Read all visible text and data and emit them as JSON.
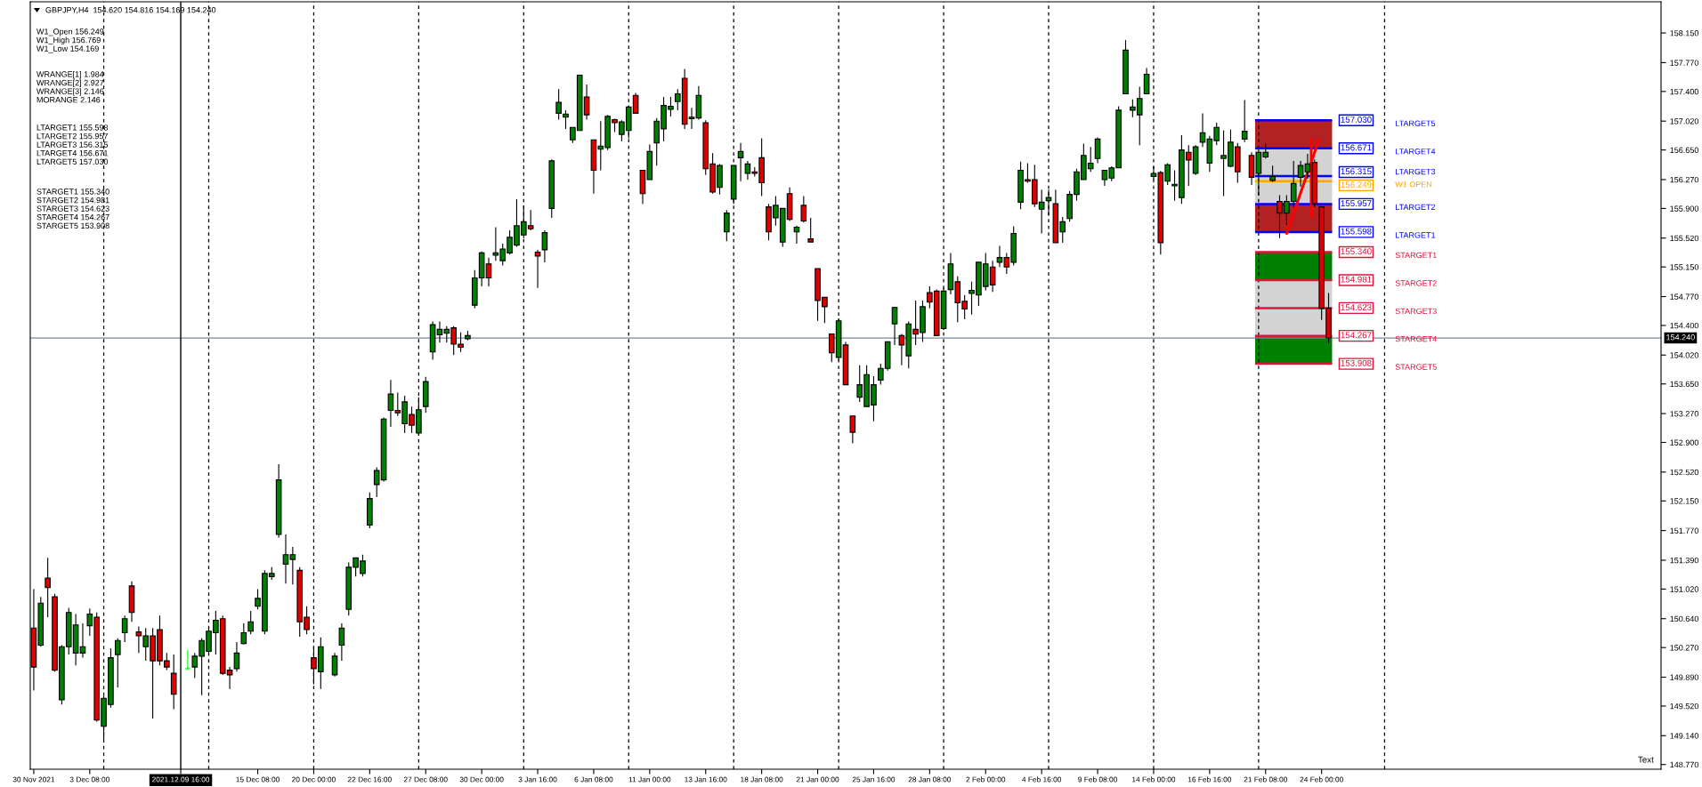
{
  "chart_data": {
    "type": "candlestick",
    "title": "GBPJPY,H4  154.620 154.816 154.169 154.240",
    "annotations": [
      "W1_Open 156.249\nW1_High 156.769\nW1_Low 154.169",
      "WRANGE[1] 1.984\nWRANGE[2] 2.927\nWRANGE[3] 2.146\nMORANGE 2.146",
      "LTARGET1 155.598\nLTARGET2 155.957\nLTARGET3 156.315\nLTARGET4 156.671\nLTARGET5 157.030",
      "STARGET1 155.340\nSTARGET2 154.981\nSTARGET3 154.623\nSTARGET4 154.267\nSTARGET5 153.908",
      "LTARGET5",
      "LTARGET4",
      "LTARGET3",
      "W1 OPEN",
      "LTARGET2",
      "LTARGET1",
      "STARGET1",
      "STARGET2",
      "STARGET3",
      "STARGET4",
      "STARGET5",
      "Text"
    ],
    "categories": [
      "30 Nov 2021",
      null,
      null,
      null,
      null,
      null,
      null,
      null,
      "3 Dec 08:00",
      null,
      null,
      null,
      null,
      null,
      null,
      null,
      null,
      null,
      null,
      null,
      null,
      "2021.12.09 16:00",
      null,
      null,
      null,
      null,
      null,
      null,
      null,
      null,
      null,
      null,
      "15 Dec 08:00",
      null,
      null,
      null,
      null,
      null,
      null,
      null,
      "20 Dec 00:00",
      null,
      null,
      null,
      null,
      null,
      null,
      null,
      "22 Dec 16:00",
      null,
      null,
      null,
      null,
      null,
      null,
      null,
      "27 Dec 08:00",
      null,
      null,
      null,
      null,
      null,
      null,
      null,
      "30 Dec 00:00",
      null,
      null,
      null,
      null,
      null,
      null,
      null,
      "3 Jan 16:00",
      null,
      null,
      null,
      null,
      null,
      null,
      null,
      "6 Jan 08:00",
      null,
      null,
      null,
      null,
      null,
      null,
      null,
      "11 Jan 00:00",
      null,
      null,
      null,
      null,
      null,
      null,
      null,
      "13 Jan 16:00",
      null,
      null,
      null,
      null,
      null,
      null,
      null,
      "18 Jan 08:00",
      null,
      null,
      null,
      null,
      null,
      null,
      null,
      "21 Jan 00:00",
      null,
      null,
      null,
      null,
      null,
      null,
      null,
      "25 Jan 16:00",
      null,
      null,
      null,
      null,
      null,
      null,
      null,
      "28 Jan 08:00",
      null,
      null,
      null,
      null,
      null,
      null,
      null,
      "2 Feb 00:00",
      null,
      null,
      null,
      null,
      null,
      null,
      null,
      "4 Feb 16:00",
      null,
      null,
      null,
      null,
      null,
      null,
      null,
      "9 Feb 08:00",
      null,
      null,
      null,
      null,
      null,
      null,
      null,
      "14 Feb 00:00",
      null,
      null,
      null,
      null,
      null,
      null,
      null,
      "16 Feb 16:00",
      null,
      null,
      null,
      null,
      null,
      null,
      null,
      "21 Feb 08:00",
      null,
      null,
      null,
      null,
      null,
      null,
      null,
      "24 Feb 00:00",
      null,
      null,
      null,
      null,
      null,
      null,
      null,
      null,
      null,
      null,
      null,
      null,
      null,
      null,
      null,
      null,
      null,
      null,
      null,
      null,
      null,
      null,
      null,
      null,
      null,
      null,
      null,
      null,
      null,
      null,
      null,
      null,
      null,
      null,
      null,
      null,
      null,
      null,
      null,
      null,
      null,
      null,
      null,
      null,
      null,
      null,
      null,
      null
    ],
    "ohlc": [
      [
        150.52,
        151.02,
        149.72,
        150.02
      ],
      [
        150.3,
        150.92,
        150.28,
        150.84
      ],
      [
        151.16,
        151.42,
        150.66,
        151.04
      ],
      [
        150.92,
        150.96,
        149.96,
        149.98
      ],
      [
        149.6,
        150.3,
        149.54,
        150.28
      ],
      [
        150.28,
        150.78,
        150.18,
        150.72
      ],
      [
        150.2,
        150.7,
        150.04,
        150.56
      ],
      [
        150.2,
        150.58,
        150.14,
        150.28
      ],
      [
        150.55,
        150.77,
        150.42,
        150.7
      ],
      [
        150.66,
        150.72,
        149.32,
        149.34
      ],
      [
        149.26,
        149.65,
        149.09,
        149.62
      ],
      [
        149.54,
        150.26,
        149.5,
        150.14
      ],
      [
        150.18,
        150.39,
        149.76,
        150.36
      ],
      [
        150.46,
        150.68,
        150.34,
        150.64
      ],
      [
        151.06,
        151.12,
        150.6,
        150.72
      ],
      [
        150.47,
        150.54,
        150.2,
        150.42
      ],
      [
        150.28,
        150.52,
        150.1,
        150.42
      ],
      [
        150.42,
        150.52,
        149.36,
        150.1
      ],
      [
        150.5,
        150.68,
        150.04,
        150.1
      ],
      [
        150.1,
        150.2,
        149.98,
        150.02
      ],
      [
        149.94,
        150.18,
        149.48,
        149.67
      ],
      null,
      [
        150.0,
        150.24,
        149.98,
        150.0
      ],
      [
        150.02,
        150.2,
        149.88,
        150.16
      ],
      [
        150.16,
        150.39,
        149.66,
        150.36
      ],
      [
        150.22,
        150.54,
        150.18,
        150.48
      ],
      [
        150.46,
        150.74,
        150.18,
        150.62
      ],
      [
        150.64,
        150.68,
        149.92,
        149.94
      ],
      [
        149.98,
        150.02,
        149.74,
        149.92
      ],
      [
        150.0,
        150.34,
        149.96,
        150.2
      ],
      [
        150.32,
        150.58,
        150.31,
        150.46
      ],
      [
        150.48,
        150.74,
        150.44,
        150.6
      ],
      [
        150.8,
        151.02,
        150.76,
        150.9
      ],
      [
        150.48,
        151.26,
        150.44,
        151.22
      ],
      [
        151.18,
        151.3,
        151.14,
        151.22
      ],
      [
        151.72,
        152.62,
        151.68,
        152.42
      ],
      [
        151.34,
        151.72,
        151.09,
        151.46
      ],
      [
        151.4,
        151.56,
        151.08,
        151.46
      ],
      [
        151.26,
        151.3,
        150.41,
        150.6
      ],
      [
        150.66,
        150.8,
        150.44,
        150.5
      ],
      [
        150.14,
        150.28,
        149.8,
        150.0
      ],
      [
        149.96,
        150.4,
        149.74,
        150.28
      ],
      null,
      [
        149.92,
        150.2,
        149.9,
        150.16
      ],
      [
        150.3,
        150.58,
        150.1,
        150.52
      ],
      [
        150.76,
        151.36,
        150.68,
        151.3
      ],
      [
        151.3,
        151.42,
        151.18,
        151.42
      ],
      [
        151.22,
        151.46,
        151.18,
        151.38
      ],
      [
        151.84,
        152.26,
        151.8,
        152.18
      ],
      [
        152.36,
        152.58,
        152.2,
        152.54
      ],
      [
        152.42,
        153.22,
        152.4,
        153.2
      ],
      [
        153.31,
        153.7,
        153.1,
        153.52
      ],
      [
        153.31,
        153.54,
        153.24,
        153.28
      ],
      [
        153.14,
        153.5,
        153.02,
        153.42
      ],
      [
        153.26,
        153.36,
        153.02,
        153.12
      ],
      [
        153.02,
        153.48,
        153.0,
        153.32
      ],
      [
        153.36,
        153.74,
        153.28,
        153.68
      ],
      [
        154.06,
        154.45,
        153.96,
        154.41
      ],
      [
        154.28,
        154.45,
        154.18,
        154.35
      ],
      [
        154.3,
        154.39,
        154.18,
        154.35
      ],
      [
        154.37,
        154.39,
        154.02,
        154.16
      ],
      [
        154.16,
        154.31,
        154.06,
        154.12
      ],
      [
        154.23,
        154.33,
        154.21,
        154.27
      ],
      [
        154.66,
        155.11,
        154.62,
        155.01
      ],
      [
        155.01,
        155.35,
        154.9,
        155.33
      ],
      [
        155.19,
        155.27,
        154.9,
        155.01
      ],
      [
        155.3,
        155.66,
        155.23,
        155.33
      ],
      [
        155.23,
        155.45,
        155.17,
        155.38
      ],
      [
        155.33,
        155.62,
        155.31,
        155.53
      ],
      [
        155.43,
        156.02,
        155.41,
        155.68
      ],
      [
        155.56,
        155.94,
        155.52,
        155.73
      ],
      [
        155.68,
        155.88,
        155.62,
        155.64
      ],
      [
        155.34,
        155.37,
        154.88,
        155.29
      ],
      [
        155.37,
        155.62,
        155.21,
        155.59
      ],
      [
        155.9,
        156.53,
        155.78,
        156.51
      ],
      [
        157.12,
        157.43,
        157.04,
        157.26
      ],
      [
        157.07,
        157.16,
        156.92,
        157.11
      ],
      [
        156.78,
        156.94,
        156.74,
        156.94
      ],
      [
        156.9,
        157.61,
        156.9,
        157.61
      ],
      [
        157.33,
        157.49,
        157.04,
        157.1
      ],
      [
        156.78,
        156.78,
        156.09,
        156.39
      ],
      [
        156.66,
        157.02,
        156.39,
        156.7
      ],
      [
        156.68,
        157.1,
        156.65,
        157.08
      ],
      [
        157.04,
        157.05,
        156.88,
        157.0
      ],
      [
        156.85,
        157.03,
        156.76,
        157.01
      ],
      [
        156.9,
        157.22,
        156.8,
        157.2
      ],
      [
        157.35,
        157.38,
        157.12,
        157.12
      ],
      [
        156.39,
        156.39,
        155.96,
        156.09
      ],
      [
        156.27,
        156.72,
        156.27,
        156.63
      ],
      [
        156.74,
        157.06,
        156.45,
        157.02
      ],
      [
        156.92,
        157.33,
        156.76,
        157.22
      ],
      [
        157.17,
        157.33,
        157.08,
        157.21
      ],
      [
        157.27,
        157.43,
        157.16,
        157.37
      ],
      [
        157.57,
        157.69,
        156.92,
        156.98
      ],
      [
        157.05,
        157.19,
        156.92,
        157.07
      ],
      [
        157.06,
        157.47,
        157.04,
        157.35
      ],
      [
        157.0,
        157.03,
        156.33,
        156.41
      ],
      [
        156.47,
        156.61,
        156.09,
        156.11
      ],
      [
        156.17,
        156.47,
        156.08,
        156.45
      ],
      [
        155.6,
        155.88,
        155.48,
        155.84
      ],
      [
        156.02,
        156.45,
        155.96,
        156.45
      ],
      [
        156.55,
        156.74,
        156.25,
        156.63
      ],
      [
        156.35,
        156.51,
        156.27,
        156.47
      ],
      [
        156.37,
        156.43,
        156.31,
        156.35
      ],
      [
        156.55,
        156.8,
        156.06,
        156.23
      ],
      [
        155.92,
        155.96,
        155.49,
        155.6
      ],
      [
        155.78,
        156.06,
        155.68,
        155.94
      ],
      [
        155.47,
        155.9,
        155.41,
        155.9
      ],
      [
        156.09,
        156.17,
        155.74,
        155.76
      ],
      [
        155.6,
        155.68,
        155.45,
        155.66
      ],
      [
        155.94,
        156.06,
        155.72,
        155.74
      ],
      [
        155.51,
        155.78,
        155.47,
        155.47
      ],
      [
        155.13,
        155.13,
        154.46,
        154.72
      ],
      [
        154.76,
        154.76,
        154.43,
        154.64
      ],
      [
        154.29,
        154.29,
        153.93,
        154.05
      ],
      [
        153.99,
        154.49,
        153.95,
        154.46
      ],
      [
        154.15,
        154.19,
        153.64,
        153.64
      ],
      [
        153.24,
        153.24,
        152.89,
        153.03
      ],
      [
        153.48,
        153.89,
        153.42,
        153.64
      ],
      [
        153.36,
        153.89,
        153.36,
        153.77
      ],
      [
        153.38,
        153.75,
        153.17,
        153.64
      ],
      [
        153.7,
        153.91,
        153.64,
        153.85
      ],
      [
        153.85,
        154.19,
        153.82,
        154.19
      ],
      [
        154.42,
        154.64,
        154.15,
        154.63
      ],
      [
        154.27,
        154.29,
        153.89,
        154.15
      ],
      [
        154.01,
        154.45,
        153.85,
        154.42
      ],
      [
        154.35,
        154.72,
        154.15,
        154.29
      ],
      [
        154.31,
        154.72,
        154.19,
        154.64
      ],
      [
        154.82,
        154.9,
        154.62,
        154.7
      ],
      [
        154.84,
        154.86,
        154.27,
        154.27
      ],
      [
        154.36,
        154.88,
        154.34,
        154.84
      ],
      [
        154.86,
        155.33,
        154.8,
        155.19
      ],
      [
        154.96,
        155.03,
        154.44,
        154.69
      ],
      [
        154.71,
        154.79,
        154.48,
        154.61
      ],
      [
        154.81,
        154.96,
        154.54,
        154.85
      ],
      [
        154.79,
        155.21,
        154.65,
        155.21
      ],
      [
        154.9,
        155.33,
        154.85,
        155.19
      ],
      [
        155.15,
        155.23,
        154.83,
        154.92
      ],
      [
        155.21,
        155.42,
        155.15,
        155.27
      ],
      [
        155.27,
        155.33,
        155.06,
        155.15
      ],
      [
        155.21,
        155.67,
        155.17,
        155.58
      ],
      [
        155.98,
        156.5,
        155.89,
        156.39
      ],
      [
        156.27,
        156.48,
        156.23,
        156.25
      ],
      [
        156.27,
        156.46,
        155.92,
        155.96
      ],
      [
        155.89,
        156.14,
        155.58,
        155.98
      ],
      [
        156.0,
        156.14,
        155.81,
        156.04
      ],
      [
        155.96,
        156.14,
        155.46,
        155.46
      ],
      [
        155.6,
        155.79,
        155.46,
        155.73
      ],
      [
        155.77,
        156.12,
        155.73,
        156.08
      ],
      [
        156.08,
        156.41,
        156.0,
        156.37
      ],
      [
        156.27,
        156.73,
        156.27,
        156.58
      ],
      [
        156.41,
        156.69,
        156.37,
        156.48
      ],
      [
        156.54,
        156.81,
        156.48,
        156.79
      ],
      [
        156.27,
        156.39,
        156.19,
        156.39
      ],
      [
        156.29,
        156.44,
        156.25,
        156.42
      ],
      [
        156.42,
        157.21,
        156.42,
        157.16
      ],
      [
        157.37,
        158.06,
        157.37,
        157.93
      ],
      [
        157.16,
        157.3,
        157.07,
        157.2
      ],
      [
        157.1,
        157.46,
        156.71,
        157.31
      ],
      [
        157.37,
        157.7,
        157.37,
        157.62
      ],
      [
        156.31,
        156.44,
        156.27,
        156.35
      ],
      [
        156.36,
        156.38,
        155.31,
        155.46
      ],
      [
        156.25,
        156.48,
        156.2,
        156.46
      ],
      [
        156.19,
        156.39,
        156.0,
        156.21
      ],
      [
        156.04,
        156.84,
        155.96,
        156.65
      ],
      [
        156.62,
        156.71,
        156.19,
        156.52
      ],
      [
        156.35,
        156.71,
        156.33,
        156.69
      ],
      [
        156.75,
        157.12,
        156.69,
        156.87
      ],
      [
        156.48,
        156.83,
        156.37,
        156.79
      ],
      [
        156.77,
        157.0,
        156.71,
        156.94
      ],
      [
        156.54,
        156.9,
        156.06,
        156.58
      ],
      [
        156.44,
        156.91,
        156.43,
        156.75
      ],
      [
        156.69,
        156.74,
        156.23,
        156.37
      ],
      [
        156.79,
        157.29,
        156.75,
        156.89
      ],
      [
        156.58,
        156.62,
        156.2,
        156.3
      ],
      [
        156.35,
        156.66,
        156.07,
        156.62
      ],
      [
        156.56,
        156.73,
        156.54,
        156.62
      ],
      [
        156.26,
        156.45,
        156.24,
        156.31
      ],
      [
        155.99,
        156.07,
        155.52,
        155.84
      ],
      [
        155.84,
        156.07,
        155.69,
        155.99
      ],
      [
        155.99,
        156.51,
        155.92,
        156.22
      ],
      [
        156.3,
        156.51,
        156.18,
        156.45
      ],
      [
        156.37,
        156.6,
        156.28,
        156.47
      ],
      [
        156.49,
        156.53,
        155.92,
        155.96
      ],
      [
        155.92,
        155.92,
        154.47,
        154.62
      ],
      [
        154.62,
        154.816,
        154.169,
        154.24
      ],
      null,
      null,
      null,
      null,
      null,
      null,
      null,
      null,
      null,
      null,
      null,
      null,
      null,
      null,
      null,
      null,
      null,
      null,
      null,
      null,
      null,
      null,
      null,
      null,
      null,
      null,
      null,
      null,
      null,
      null,
      null,
      null,
      null,
      null,
      null,
      null,
      null,
      null,
      null,
      null,
      null,
      null,
      null,
      null,
      null,
      null,
      null
    ],
    "colors": [
      "#e00000",
      "#008000",
      "#e00000",
      "#e00000",
      "#008000",
      "#008000",
      "#008000",
      "#008000",
      "#008000",
      "#e00000",
      "#008000",
      "#008000",
      "#008000",
      "#008000",
      "#e00000",
      "#e00000",
      "#008000",
      "#e00000",
      "#e00000",
      "#e00000",
      "#e00000",
      null,
      "#00ff00",
      "#008000",
      "#008000",
      "#008000",
      "#008000",
      "#e00000",
      "#e00000",
      "#008000",
      "#008000",
      "#008000",
      "#008000",
      "#008000",
      "#008000",
      "#008000",
      "#008000",
      "#008000",
      "#e00000",
      "#e00000",
      "#e00000",
      "#008000",
      null,
      "#008000",
      "#008000",
      "#008000",
      "#008000",
      "#008000",
      "#008000",
      "#008000",
      "#008000",
      "#008000",
      "#e00000",
      "#008000",
      "#e00000",
      "#008000",
      "#008000",
      "#008000",
      "#008000",
      "#008000",
      "#e00000",
      "#e00000",
      "#008000",
      "#008000",
      "#008000",
      "#e00000",
      "#008000",
      "#008000",
      "#008000",
      "#008000",
      "#008000",
      "#e00000",
      "#e00000",
      "#008000",
      "#008000",
      "#008000",
      "#008000",
      "#008000",
      "#008000",
      "#e00000",
      "#e00000",
      "#008000",
      "#008000",
      "#e00000",
      "#008000",
      "#008000",
      "#e00000",
      "#e00000",
      "#008000",
      "#008000",
      "#008000",
      "#008000",
      "#008000",
      "#e00000",
      "#008000",
      "#008000",
      "#e00000",
      "#e00000",
      "#008000",
      "#008000",
      "#008000",
      "#008000",
      "#008000",
      "#e00000",
      "#e00000",
      "#e00000",
      "#008000",
      "#008000",
      "#e00000",
      "#008000",
      "#e00000",
      "#e00000",
      "#e00000",
      "#e00000",
      "#e00000",
      "#008000",
      "#e00000",
      "#e00000",
      "#008000",
      "#008000",
      "#008000",
      "#008000",
      "#008000",
      "#008000",
      "#e00000",
      "#008000",
      "#e00000",
      "#008000",
      "#e00000",
      "#e00000",
      "#008000",
      "#008000",
      "#e00000",
      "#e00000",
      "#008000",
      "#008000",
      "#008000",
      "#e00000",
      "#008000",
      "#e00000",
      "#008000",
      "#008000",
      "#e00000",
      "#e00000",
      "#008000",
      "#008000",
      "#e00000",
      "#008000",
      "#008000",
      "#008000",
      "#008000",
      "#008000",
      "#008000",
      "#008000",
      "#008000",
      "#008000",
      "#008000",
      "#008000",
      "#008000",
      "#008000",
      "#008000",
      "#e00000",
      "#008000",
      "#008000",
      "#008000",
      "#e00000",
      "#008000",
      "#008000",
      "#008000",
      "#008000",
      "#008000",
      "#008000",
      "#e00000",
      "#008000",
      "#e00000",
      "#008000",
      "#008000",
      "#008000",
      "#e00000",
      "#008000",
      "#008000",
      "#008000",
      "#008000",
      "#e00000",
      "#e00000",
      "#e00000",
      null,
      null,
      null,
      null,
      null,
      null,
      null,
      null,
      null,
      null,
      null,
      null,
      null,
      null,
      null,
      null,
      null,
      null,
      null,
      null,
      null,
      null,
      null,
      null,
      null,
      null,
      null,
      null,
      null,
      null,
      null,
      null,
      null,
      null,
      null,
      null,
      null,
      null,
      null,
      null,
      null,
      null,
      null,
      null,
      null,
      null,
      null
    ],
    "ylim": [
      148.71,
      158.55
    ],
    "yticks": [
      {
        "value": 158.15,
        "label": "158.150"
      },
      {
        "value": 157.77,
        "label": "157.770"
      },
      {
        "value": 157.4,
        "label": "157.400"
      },
      {
        "value": 157.02,
        "label": "157.020"
      },
      {
        "value": 156.65,
        "label": "156.650"
      },
      {
        "value": 156.27,
        "label": "156.270"
      },
      {
        "value": 155.9,
        "label": "155.900"
      },
      {
        "value": 155.52,
        "label": "155.520"
      },
      {
        "value": 155.15,
        "label": "155.150"
      },
      {
        "value": 154.77,
        "label": "154.770"
      },
      {
        "value": 154.4,
        "label": "154.400"
      },
      {
        "value": 154.02,
        "label": "154.020"
      },
      {
        "value": 153.65,
        "label": "153.650"
      },
      {
        "value": 153.27,
        "label": "153.270"
      },
      {
        "value": 152.9,
        "label": "152.900"
      },
      {
        "value": 152.52,
        "label": "152.520"
      },
      {
        "value": 152.15,
        "label": "152.150"
      },
      {
        "value": 151.77,
        "label": "151.770"
      },
      {
        "value": 151.39,
        "label": "151.390"
      },
      {
        "value": 151.02,
        "label": "151.020"
      },
      {
        "value": 150.64,
        "label": "150.640"
      },
      {
        "value": 150.27,
        "label": "150.270"
      },
      {
        "value": 149.89,
        "label": "149.890"
      },
      {
        "value": 149.52,
        "label": "149.520"
      },
      {
        "value": 149.14,
        "label": "149.140"
      },
      {
        "value": 148.77,
        "label": "148.770"
      }
    ],
    "grid": false,
    "ref_lines": [
      {
        "axis": "x",
        "value": "2021.12.09 16:00",
        "color": "#000000"
      },
      {
        "axis": "y",
        "value": 154.24,
        "label": "154.240",
        "color": "#778899"
      },
      {
        "axis": "y",
        "value": 157.03,
        "label": "157.030",
        "color": "#0000ff"
      },
      {
        "axis": "y",
        "value": 156.671,
        "label": "156.671",
        "color": "#0000ff"
      },
      {
        "axis": "y",
        "value": 156.315,
        "label": "156.315",
        "color": "#0000ff"
      },
      {
        "axis": "y",
        "value": 156.249,
        "label": "156.249",
        "color": "#ffa500"
      },
      {
        "axis": "y",
        "value": 155.957,
        "label": "155.957",
        "color": "#0000ff"
      },
      {
        "axis": "y",
        "value": 155.598,
        "label": "155.598",
        "color": "#0000ff"
      },
      {
        "axis": "y",
        "value": 155.34,
        "label": "155.340",
        "color": "#dc143c"
      },
      {
        "axis": "y",
        "value": 154.981,
        "label": "154.981",
        "color": "#dc143c"
      },
      {
        "axis": "y",
        "value": 154.623,
        "label": "154.623",
        "color": "#dc143c"
      },
      {
        "axis": "y",
        "value": 154.267,
        "label": "154.267",
        "color": "#dc143c"
      },
      {
        "axis": "y",
        "value": 153.908,
        "label": "153.908",
        "color": "#dc143c"
      }
    ],
    "bands": [
      {
        "axis": "y",
        "from": 156.671,
        "to": 157.03,
        "color": "#b22222"
      },
      {
        "axis": "y",
        "from": 156.315,
        "to": 156.671,
        "color": "#d3d3d3"
      },
      {
        "axis": "y",
        "from": 155.957,
        "to": 156.315,
        "color": "#d3d3d3"
      },
      {
        "axis": "y",
        "from": 155.598,
        "to": 155.957,
        "color": "#b22222"
      },
      {
        "axis": "y",
        "from": 154.981,
        "to": 155.34,
        "color": "#008000"
      },
      {
        "axis": "y",
        "from": 154.623,
        "to": 154.981,
        "color": "#d3d3d3"
      },
      {
        "axis": "y",
        "from": 154.267,
        "to": 154.623,
        "color": "#d3d3d3"
      },
      {
        "axis": "y",
        "from": 153.908,
        "to": 154.267,
        "color": "#008000"
      }
    ]
  }
}
